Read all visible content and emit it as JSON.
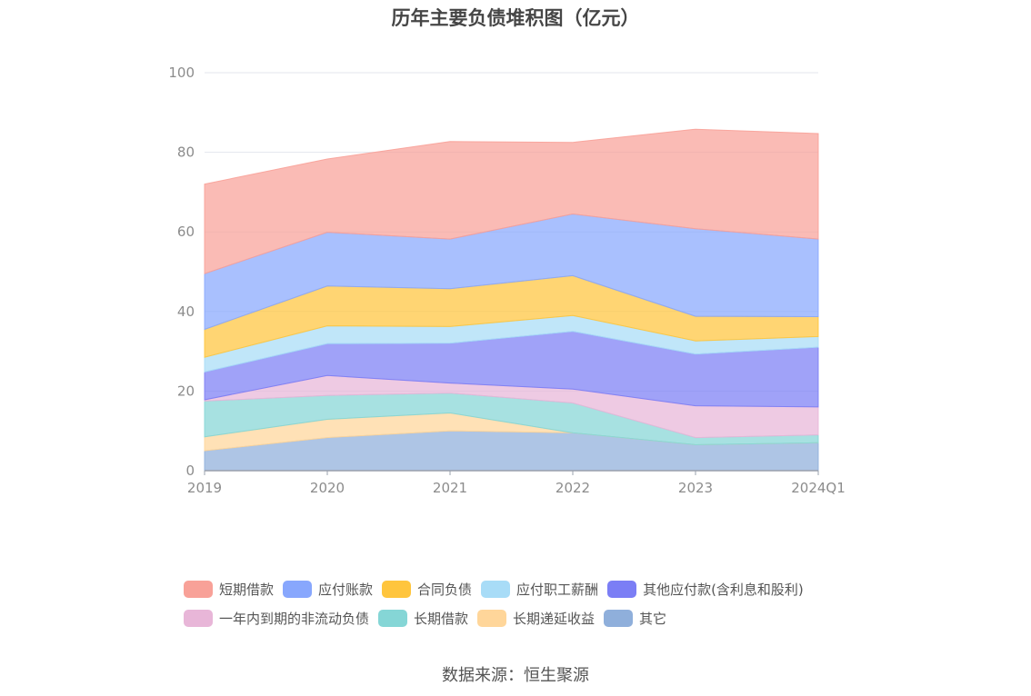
{
  "chart_data": {
    "type": "area",
    "title": "历年主要负债堆积图（亿元）",
    "source": "数据来源：恒生聚源",
    "x": [
      "2019",
      "2020",
      "2021",
      "2022",
      "2023",
      "2024Q1"
    ],
    "ylim": [
      0,
      100
    ],
    "yticks": [
      "0",
      "20",
      "40",
      "60",
      "80",
      "100"
    ],
    "grid": true,
    "stacked": true,
    "legend_position": "bottom",
    "series": [
      {
        "name": "其它",
        "color": "#8fafdb",
        "values": [
          5.0,
          8.3,
          10.0,
          9.5,
          6.5,
          7.0
        ]
      },
      {
        "name": "长期递延收益",
        "color": "#ffd69a",
        "values": [
          3.5,
          4.6,
          4.5,
          0.0,
          0.0,
          0.0
        ]
      },
      {
        "name": "长期借款",
        "color": "#85d6d6",
        "values": [
          9.0,
          6.0,
          5.0,
          7.5,
          1.8,
          2.0
        ]
      },
      {
        "name": "一年内到期的非流动负债",
        "color": "#e8b6d8",
        "values": [
          0.3,
          5.0,
          2.5,
          3.5,
          8.0,
          7.0
        ]
      },
      {
        "name": "其他应付款(含利息和股利)",
        "color": "#7b7ef5",
        "values": [
          7.0,
          8.0,
          10.0,
          14.5,
          13.0,
          15.0
        ]
      },
      {
        "name": "应付职工薪酬",
        "color": "#a8dcf7",
        "values": [
          3.7,
          4.5,
          4.2,
          4.0,
          3.3,
          2.7
        ]
      },
      {
        "name": "合同负债",
        "color": "#ffc53d",
        "values": [
          7.0,
          10.0,
          9.5,
          10.0,
          6.2,
          5.0
        ]
      },
      {
        "name": "应付账款",
        "color": "#88a7fd",
        "values": [
          14.0,
          13.5,
          12.5,
          15.5,
          22.0,
          19.5
        ]
      },
      {
        "name": "短期借款",
        "color": "#f8a198",
        "values": [
          22.5,
          18.4,
          24.5,
          18.0,
          25.0,
          26.5
        ]
      }
    ],
    "legend_order": [
      "短期借款",
      "应付账款",
      "合同负债",
      "应付职工薪酬",
      "其他应付款(含利息和股利)",
      "一年内到期的非流动负债",
      "长期借款",
      "长期递延收益",
      "其它"
    ]
  }
}
